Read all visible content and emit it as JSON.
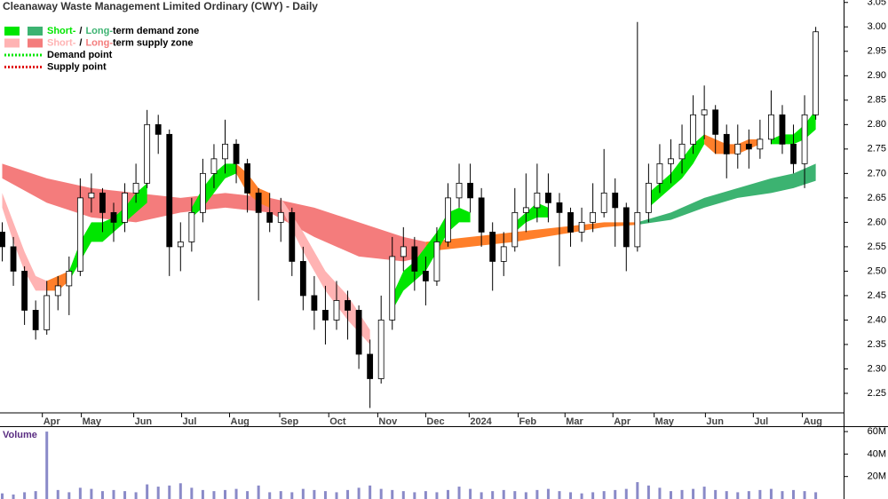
{
  "chart_data": [
    {
      "type": "candlestick",
      "title": "Cleanaway Waste Management Limited Ordinary (CWY) - Daily",
      "open": [
        2.58,
        2.55,
        2.5,
        2.42,
        2.38,
        2.45,
        2.47,
        2.5,
        2.65,
        2.66,
        2.62,
        2.6,
        2.66,
        2.68,
        2.8,
        2.78,
        2.55,
        2.56,
        2.62,
        2.7,
        2.73,
        2.76,
        2.72,
        2.66,
        2.62,
        2.6,
        2.62,
        2.52,
        2.45,
        2.42,
        2.4,
        2.44,
        2.42,
        2.33,
        2.28,
        2.4,
        2.53,
        2.55,
        2.5,
        2.48,
        2.56,
        2.65,
        2.68,
        2.65,
        2.58,
        2.52,
        2.55,
        2.62,
        2.63,
        2.66,
        2.64,
        2.62,
        2.58,
        2.6,
        2.62,
        2.66,
        2.63,
        2.55,
        2.62,
        2.68,
        2.72,
        2.73,
        2.76,
        2.82,
        2.83,
        2.78,
        2.74,
        2.76,
        2.75,
        2.77,
        2.82,
        2.76,
        2.72,
        2.82
      ],
      "high": [
        2.6,
        2.57,
        2.51,
        2.44,
        2.48,
        2.49,
        2.53,
        2.69,
        2.7,
        2.67,
        2.64,
        2.68,
        2.72,
        2.83,
        2.82,
        2.79,
        2.6,
        2.65,
        2.73,
        2.76,
        2.81,
        2.77,
        2.73,
        2.67,
        2.66,
        2.65,
        2.63,
        2.55,
        2.49,
        2.47,
        2.48,
        2.46,
        2.43,
        2.36,
        2.45,
        2.57,
        2.59,
        2.57,
        2.53,
        2.59,
        2.68,
        2.72,
        2.72,
        2.67,
        2.6,
        2.58,
        2.67,
        2.7,
        2.72,
        2.7,
        2.66,
        2.63,
        2.63,
        2.68,
        2.75,
        2.69,
        2.64,
        3.01,
        2.72,
        2.76,
        2.77,
        2.8,
        2.86,
        2.88,
        2.84,
        2.8,
        2.8,
        2.79,
        2.81,
        2.87,
        2.84,
        2.8,
        2.86,
        3.0
      ],
      "low": [
        2.52,
        2.47,
        2.39,
        2.36,
        2.37,
        2.42,
        2.41,
        2.49,
        2.62,
        2.58,
        2.56,
        2.58,
        2.64,
        2.67,
        2.74,
        2.49,
        2.5,
        2.54,
        2.6,
        2.67,
        2.7,
        2.68,
        2.62,
        2.44,
        2.58,
        2.56,
        2.49,
        2.42,
        2.38,
        2.35,
        2.38,
        2.36,
        2.3,
        2.22,
        2.27,
        2.38,
        2.5,
        2.46,
        2.43,
        2.47,
        2.55,
        2.63,
        2.62,
        2.55,
        2.46,
        2.49,
        2.54,
        2.58,
        2.6,
        2.6,
        2.51,
        2.55,
        2.56,
        2.58,
        2.61,
        2.55,
        2.5,
        2.54,
        2.6,
        2.66,
        2.68,
        2.7,
        2.74,
        2.77,
        2.74,
        2.69,
        2.71,
        2.71,
        2.73,
        2.76,
        2.74,
        2.7,
        2.67,
        2.81
      ],
      "close": [
        2.55,
        2.5,
        2.42,
        2.38,
        2.45,
        2.47,
        2.5,
        2.65,
        2.66,
        2.62,
        2.6,
        2.66,
        2.68,
        2.8,
        2.78,
        2.55,
        2.56,
        2.62,
        2.7,
        2.73,
        2.76,
        2.72,
        2.66,
        2.62,
        2.6,
        2.62,
        2.52,
        2.45,
        2.42,
        2.4,
        2.44,
        2.42,
        2.33,
        2.28,
        2.4,
        2.53,
        2.55,
        2.5,
        2.48,
        2.56,
        2.65,
        2.68,
        2.65,
        2.58,
        2.52,
        2.55,
        2.62,
        2.63,
        2.66,
        2.64,
        2.62,
        2.58,
        2.6,
        2.62,
        2.66,
        2.63,
        2.55,
        2.62,
        2.68,
        2.72,
        2.73,
        2.76,
        2.82,
        2.83,
        2.78,
        2.74,
        2.76,
        2.75,
        2.77,
        2.82,
        2.76,
        2.72,
        2.82,
        2.99
      ],
      "up_color": "#ffffff",
      "down_color": "#000000",
      "xlim": [
        -0.2,
        75.5
      ],
      "xticks": [
        {
          "value": 3.6,
          "label": "Apr"
        },
        {
          "value": 7.1,
          "label": "May"
        },
        {
          "value": 11.8,
          "label": "Jun"
        },
        {
          "value": 16.1,
          "label": "Jul"
        },
        {
          "value": 20.4,
          "label": "Aug"
        },
        {
          "value": 24.9,
          "label": "Sep"
        },
        {
          "value": 29.3,
          "label": "Oct"
        },
        {
          "value": 33.7,
          "label": "Nov"
        },
        {
          "value": 38.0,
          "label": "Dec"
        },
        {
          "value": 41.9,
          "label": "2024"
        },
        {
          "value": 46.3,
          "label": "Feb"
        },
        {
          "value": 50.5,
          "label": "Mar"
        },
        {
          "value": 54.8,
          "label": "Apr"
        },
        {
          "value": 58.5,
          "label": "May"
        },
        {
          "value": 63.1,
          "label": "Jun"
        },
        {
          "value": 67.4,
          "label": "Jul"
        },
        {
          "value": 71.8,
          "label": "Aug"
        }
      ],
      "ylim": [
        2.21,
        3.055
      ],
      "yticks": [
        2.25,
        {
          "value": 2.3,
          "label": "2.30"
        },
        2.35,
        {
          "value": 2.4,
          "label": "2.40"
        },
        2.45,
        {
          "value": 2.5,
          "label": "2.50"
        },
        2.55,
        {
          "value": 2.6,
          "label": "2.60"
        },
        2.65,
        {
          "value": 2.7,
          "label": "2.70"
        },
        2.75,
        {
          "value": 2.8,
          "label": "2.80"
        },
        2.85,
        {
          "value": 2.9,
          "label": "2.90"
        },
        2.95,
        {
          "value": 3.0,
          "label": "3.00"
        },
        3.05
      ],
      "bands": [
        {
          "color": "#f47c7c",
          "x": [
            0,
            4,
            8,
            12,
            16,
            20,
            24,
            28,
            32,
            36,
            38
          ],
          "upper": [
            2.72,
            2.69,
            2.67,
            2.66,
            2.65,
            2.66,
            2.65,
            2.63,
            2.6,
            2.57,
            2.56
          ],
          "lower": [
            2.69,
            2.64,
            2.61,
            2.6,
            2.62,
            2.63,
            2.62,
            2.57,
            2.53,
            2.52,
            2.53
          ]
        },
        {
          "color": "#ff7f2a",
          "x": [
            38,
            42,
            46,
            50,
            54,
            57
          ],
          "upper": [
            2.56,
            2.57,
            2.58,
            2.59,
            2.6,
            2.6
          ],
          "lower": [
            2.54,
            2.55,
            2.56,
            2.575,
            2.59,
            2.595
          ]
        },
        {
          "color": "#3cb371",
          "x": [
            57,
            60,
            63,
            66,
            69,
            71,
            73
          ],
          "upper": [
            2.6,
            2.62,
            2.65,
            2.67,
            2.69,
            2.7,
            2.72
          ],
          "lower": [
            2.595,
            2.605,
            2.63,
            2.65,
            2.66,
            2.67,
            2.685
          ]
        },
        {
          "color": "#ffb3b3",
          "x": [
            0,
            1,
            2,
            3,
            4
          ],
          "upper": [
            2.66,
            2.6,
            2.54,
            2.49,
            2.48
          ],
          "lower": [
            2.63,
            2.56,
            2.5,
            2.46,
            2.46
          ]
        },
        {
          "color": "#ffb3b3",
          "x": [
            25,
            27,
            29,
            31,
            33
          ],
          "upper": [
            2.65,
            2.58,
            2.5,
            2.45,
            2.38
          ],
          "lower": [
            2.63,
            2.54,
            2.46,
            2.4,
            2.35
          ]
        },
        {
          "color": "#ff7f2a",
          "x": [
            4,
            5,
            6
          ],
          "upper": [
            2.48,
            2.49,
            2.5
          ],
          "lower": [
            2.46,
            2.46,
            2.48
          ]
        },
        {
          "color": "#00e600",
          "x": [
            6,
            7,
            8,
            9,
            10,
            11,
            12,
            13
          ],
          "upper": [
            2.5,
            2.56,
            2.6,
            2.6,
            2.61,
            2.63,
            2.66,
            2.68
          ],
          "lower": [
            2.48,
            2.52,
            2.56,
            2.56,
            2.58,
            2.6,
            2.62,
            2.64
          ]
        },
        {
          "color": "#00e600",
          "x": [
            17,
            18,
            19,
            20,
            21
          ],
          "upper": [
            2.63,
            2.67,
            2.7,
            2.72,
            2.72
          ],
          "lower": [
            2.61,
            2.63,
            2.66,
            2.69,
            2.7
          ]
        },
        {
          "color": "#ff7f2a",
          "x": [
            21,
            22,
            23,
            24
          ],
          "upper": [
            2.72,
            2.7,
            2.67,
            2.66
          ],
          "lower": [
            2.7,
            2.66,
            2.64,
            2.63
          ]
        },
        {
          "color": "#00e600",
          "x": [
            35,
            36,
            37,
            38,
            39,
            40,
            41,
            42
          ],
          "upper": [
            2.45,
            2.5,
            2.52,
            2.55,
            2.58,
            2.62,
            2.63,
            2.62
          ],
          "lower": [
            2.42,
            2.46,
            2.48,
            2.5,
            2.54,
            2.58,
            2.6,
            2.6
          ]
        },
        {
          "color": "#00e600",
          "x": [
            46,
            47,
            48,
            49
          ],
          "upper": [
            2.6,
            2.62,
            2.64,
            2.63
          ],
          "lower": [
            2.58,
            2.6,
            2.61,
            2.61
          ]
        },
        {
          "color": "#00e600",
          "x": [
            58,
            59,
            60,
            61,
            62,
            63
          ],
          "upper": [
            2.66,
            2.68,
            2.7,
            2.73,
            2.76,
            2.78
          ],
          "lower": [
            2.63,
            2.65,
            2.67,
            2.69,
            2.72,
            2.76
          ]
        },
        {
          "color": "#ff7f2a",
          "x": [
            63,
            64,
            65,
            66,
            67,
            68
          ],
          "upper": [
            2.78,
            2.77,
            2.76,
            2.76,
            2.77,
            2.77
          ],
          "lower": [
            2.76,
            2.74,
            2.74,
            2.74,
            2.75,
            2.76
          ]
        },
        {
          "color": "#00e600",
          "x": [
            69,
            70,
            71,
            72,
            73
          ],
          "upper": [
            2.77,
            2.78,
            2.78,
            2.8,
            2.83
          ],
          "lower": [
            2.76,
            2.76,
            2.76,
            2.77,
            2.79
          ]
        }
      ],
      "legend": [
        {
          "short": "Short-",
          "sep": "/",
          "long": "Long-",
          "rest": "term demand zone",
          "colors": [
            "#00e600",
            "#3cb371"
          ]
        },
        {
          "short": "Short-",
          "sep": "/",
          "long": "Long-",
          "rest": "term supply zone",
          "colors": [
            "#ffb3b3",
            "#f47c7c"
          ]
        },
        {
          "label": "Demand point",
          "color": "#00e600"
        },
        {
          "label": "Supply point",
          "color": "#e00000"
        }
      ]
    },
    {
      "type": "bar",
      "title": "Volume",
      "color": "#8a8ac8",
      "values": [
        5,
        4,
        6,
        7,
        60,
        8,
        6,
        10,
        9,
        7,
        8,
        7,
        6,
        13,
        11,
        12,
        14,
        10,
        8,
        7,
        8,
        9,
        7,
        12,
        6,
        7,
        6,
        9,
        8,
        7,
        6,
        8,
        10,
        12,
        9,
        8,
        7,
        6,
        7,
        6,
        8,
        11,
        9,
        6,
        7,
        8,
        7,
        6,
        8,
        9,
        7,
        6,
        5,
        6,
        7,
        8,
        9,
        15,
        12,
        10,
        7,
        8,
        9,
        11,
        8,
        7,
        6,
        7,
        8,
        9,
        7,
        8,
        7,
        6
      ],
      "xlim": [
        -0.2,
        75.5
      ],
      "ylim": [
        0,
        64
      ],
      "yticks": [
        {
          "value": 20,
          "label": "20M"
        },
        {
          "value": 40,
          "label": "40M"
        },
        {
          "value": 60,
          "label": "60M"
        }
      ]
    }
  ]
}
